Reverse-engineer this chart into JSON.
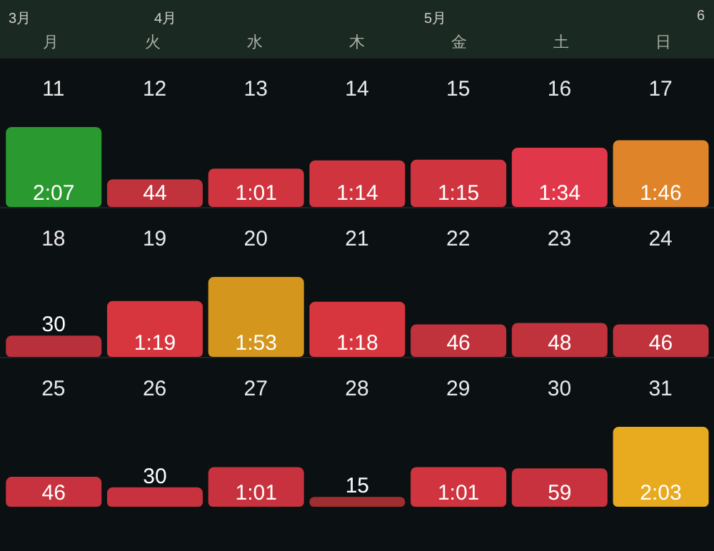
{
  "chart_data": [
    {
      "type": "bar",
      "annotations": [
        "3月",
        "4月",
        "5月",
        "6",
        "月",
        "火",
        "水",
        "木",
        "金",
        "土",
        "日"
      ],
      "categories": [
        "11",
        "12",
        "13",
        "14",
        "15",
        "16",
        "17"
      ],
      "values": [
        127,
        44,
        61,
        74,
        75,
        94,
        106
      ],
      "colors": [
        "#2a9a30",
        "#c0323c",
        "#d0343f",
        "#d0343f",
        "#d0343f",
        "#e0384a",
        "#e0842a"
      ],
      "value_labels": [
        "2:07",
        "44",
        "1:01",
        "1:14",
        "1:15",
        "1:34",
        "1:46"
      ],
      "legend": false,
      "grid": false
    },
    {
      "type": "bar",
      "categories": [
        "18",
        "19",
        "20",
        "21",
        "22",
        "23",
        "24"
      ],
      "values": [
        30,
        79,
        113,
        78,
        46,
        48,
        46
      ],
      "colors": [
        "#b8303a",
        "#d8363f",
        "#d4961c",
        "#d8363f",
        "#c0323c",
        "#c0323c",
        "#c0323c"
      ],
      "value_labels": [
        "30",
        "1:19",
        "1:53",
        "1:18",
        "46",
        "48",
        "46"
      ],
      "legend": false,
      "grid": false
    },
    {
      "type": "bar",
      "categories": [
        "25",
        "26",
        "27",
        "28",
        "29",
        "30",
        "31"
      ],
      "values": [
        46,
        30,
        61,
        15,
        61,
        59,
        123
      ],
      "colors": [
        "#c8323e",
        "#c8323e",
        "#c8323e",
        "#a02e30",
        "#d0343f",
        "#c8323e",
        "#e8aa1e"
      ],
      "value_labels": [
        "46",
        "30",
        "1:01",
        "15",
        "1:01",
        "59",
        "2:03"
      ],
      "legend": false,
      "grid": false
    }
  ]
}
